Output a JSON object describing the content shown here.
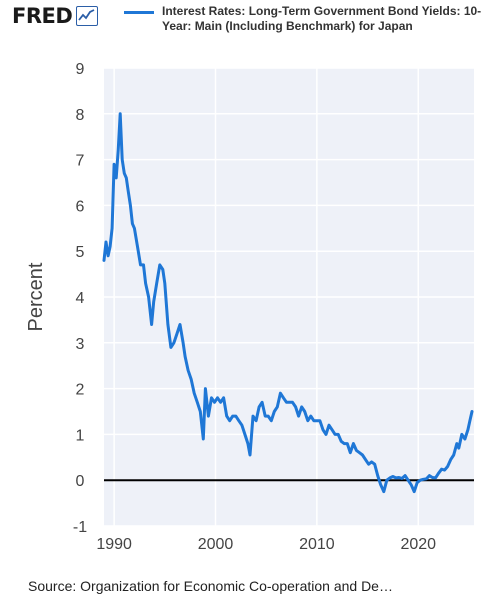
{
  "header": {
    "logo_text": "FRED",
    "legend_label": "Interest Rates: Long-Term Government Bond Yields: 10-Year: Main (Including Benchmark) for Japan"
  },
  "footer": {
    "source": "Source: Organization for Economic Co-operation and De…"
  },
  "colors": {
    "series": "#1f77d6",
    "plot_background": "#eef1f8",
    "zero_line": "#000000",
    "grid": "#ffffff"
  },
  "icons": {
    "logo_mark": "chart-line-icon"
  },
  "chart_data": {
    "type": "line",
    "title": "",
    "xlabel": "",
    "ylabel": "Percent",
    "xlim": [
      1989,
      2025.5
    ],
    "ylim": [
      -1,
      9
    ],
    "x_ticks": [
      1990,
      2000,
      2010,
      2020
    ],
    "y_ticks": [
      -1,
      0,
      1,
      2,
      3,
      4,
      5,
      6,
      7,
      8,
      9
    ],
    "grid": true,
    "legend": "top",
    "series": [
      {
        "name": "Interest Rates: Long-Term Government Bond Yields: 10-Year: Main (Including Benchmark) for Japan",
        "points": [
          [
            1989.0,
            4.8
          ],
          [
            1989.2,
            5.2
          ],
          [
            1989.4,
            4.9
          ],
          [
            1989.6,
            5.1
          ],
          [
            1989.8,
            5.5
          ],
          [
            1990.0,
            6.9
          ],
          [
            1990.2,
            6.6
          ],
          [
            1990.4,
            7.2
          ],
          [
            1990.6,
            8.0
          ],
          [
            1990.8,
            7.0
          ],
          [
            1991.0,
            6.7
          ],
          [
            1991.2,
            6.6
          ],
          [
            1991.4,
            6.3
          ],
          [
            1991.6,
            6.0
          ],
          [
            1991.8,
            5.6
          ],
          [
            1992.0,
            5.5
          ],
          [
            1992.3,
            5.1
          ],
          [
            1992.6,
            4.7
          ],
          [
            1992.9,
            4.7
          ],
          [
            1993.1,
            4.3
          ],
          [
            1993.4,
            4.0
          ],
          [
            1993.7,
            3.4
          ],
          [
            1993.9,
            3.9
          ],
          [
            1994.2,
            4.3
          ],
          [
            1994.5,
            4.7
          ],
          [
            1994.8,
            4.6
          ],
          [
            1995.0,
            4.3
          ],
          [
            1995.3,
            3.4
          ],
          [
            1995.6,
            2.9
          ],
          [
            1995.9,
            3.0
          ],
          [
            1996.2,
            3.2
          ],
          [
            1996.5,
            3.4
          ],
          [
            1996.8,
            3.0
          ],
          [
            1997.0,
            2.7
          ],
          [
            1997.3,
            2.4
          ],
          [
            1997.6,
            2.2
          ],
          [
            1997.9,
            1.9
          ],
          [
            1998.2,
            1.7
          ],
          [
            1998.5,
            1.5
          ],
          [
            1998.8,
            0.9
          ],
          [
            1999.0,
            2.0
          ],
          [
            1999.3,
            1.4
          ],
          [
            1999.6,
            1.8
          ],
          [
            1999.9,
            1.7
          ],
          [
            2000.2,
            1.8
          ],
          [
            2000.5,
            1.7
          ],
          [
            2000.8,
            1.8
          ],
          [
            2001.1,
            1.4
          ],
          [
            2001.4,
            1.3
          ],
          [
            2001.7,
            1.4
          ],
          [
            2002.0,
            1.4
          ],
          [
            2002.3,
            1.3
          ],
          [
            2002.6,
            1.2
          ],
          [
            2002.9,
            1.0
          ],
          [
            2003.2,
            0.8
          ],
          [
            2003.4,
            0.55
          ],
          [
            2003.7,
            1.4
          ],
          [
            2004.0,
            1.3
          ],
          [
            2004.3,
            1.6
          ],
          [
            2004.6,
            1.7
          ],
          [
            2004.9,
            1.4
          ],
          [
            2005.2,
            1.4
          ],
          [
            2005.5,
            1.3
          ],
          [
            2005.8,
            1.5
          ],
          [
            2006.1,
            1.6
          ],
          [
            2006.4,
            1.9
          ],
          [
            2006.7,
            1.8
          ],
          [
            2007.0,
            1.7
          ],
          [
            2007.3,
            1.7
          ],
          [
            2007.6,
            1.7
          ],
          [
            2007.9,
            1.6
          ],
          [
            2008.2,
            1.4
          ],
          [
            2008.5,
            1.6
          ],
          [
            2008.8,
            1.5
          ],
          [
            2009.1,
            1.3
          ],
          [
            2009.4,
            1.4
          ],
          [
            2009.7,
            1.3
          ],
          [
            2010.0,
            1.3
          ],
          [
            2010.3,
            1.3
          ],
          [
            2010.6,
            1.1
          ],
          [
            2010.9,
            1.0
          ],
          [
            2011.2,
            1.2
          ],
          [
            2011.5,
            1.1
          ],
          [
            2011.8,
            1.0
          ],
          [
            2012.1,
            1.0
          ],
          [
            2012.4,
            0.85
          ],
          [
            2012.7,
            0.8
          ],
          [
            2013.0,
            0.8
          ],
          [
            2013.3,
            0.6
          ],
          [
            2013.6,
            0.8
          ],
          [
            2013.9,
            0.65
          ],
          [
            2014.2,
            0.6
          ],
          [
            2014.5,
            0.55
          ],
          [
            2014.8,
            0.45
          ],
          [
            2015.1,
            0.35
          ],
          [
            2015.4,
            0.4
          ],
          [
            2015.7,
            0.35
          ],
          [
            2016.0,
            0.1
          ],
          [
            2016.3,
            -0.1
          ],
          [
            2016.6,
            -0.25
          ],
          [
            2016.9,
            0.0
          ],
          [
            2017.2,
            0.05
          ],
          [
            2017.5,
            0.08
          ],
          [
            2017.8,
            0.05
          ],
          [
            2018.1,
            0.06
          ],
          [
            2018.4,
            0.04
          ],
          [
            2018.7,
            0.1
          ],
          [
            2019.0,
            0.0
          ],
          [
            2019.3,
            -0.1
          ],
          [
            2019.6,
            -0.25
          ],
          [
            2019.9,
            -0.05
          ],
          [
            2020.2,
            0.0
          ],
          [
            2020.5,
            0.02
          ],
          [
            2020.8,
            0.03
          ],
          [
            2021.1,
            0.1
          ],
          [
            2021.4,
            0.06
          ],
          [
            2021.7,
            0.05
          ],
          [
            2022.0,
            0.15
          ],
          [
            2022.3,
            0.24
          ],
          [
            2022.6,
            0.22
          ],
          [
            2022.9,
            0.3
          ],
          [
            2023.2,
            0.45
          ],
          [
            2023.5,
            0.55
          ],
          [
            2023.8,
            0.8
          ],
          [
            2024.0,
            0.7
          ],
          [
            2024.3,
            1.0
          ],
          [
            2024.6,
            0.9
          ],
          [
            2024.9,
            1.1
          ],
          [
            2025.1,
            1.3
          ],
          [
            2025.3,
            1.5
          ]
        ]
      }
    ]
  }
}
